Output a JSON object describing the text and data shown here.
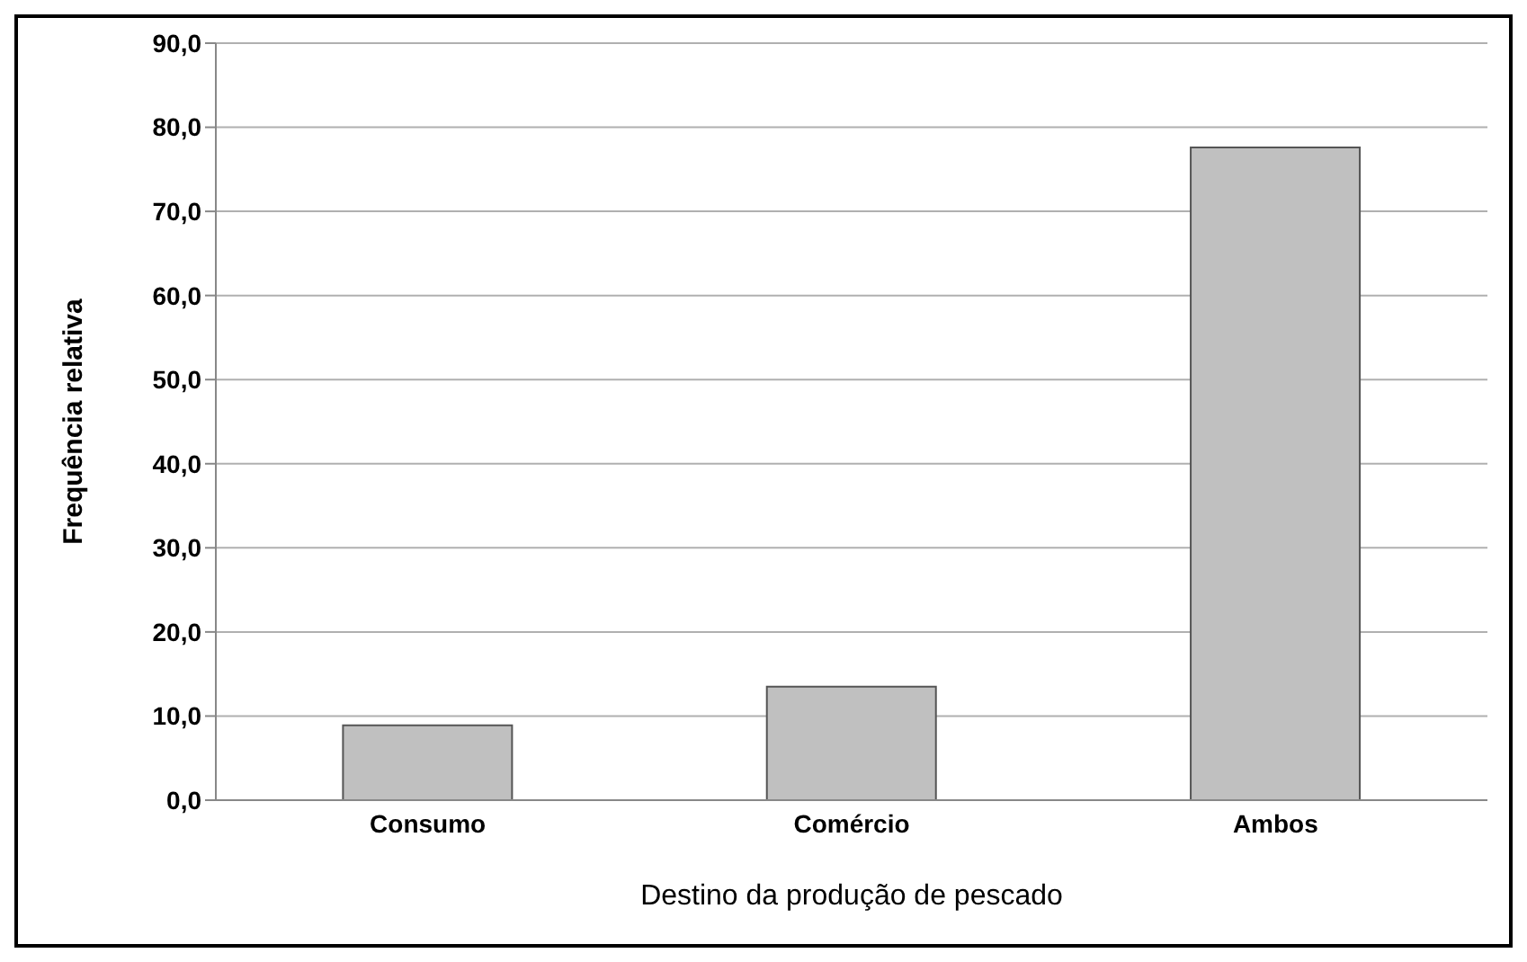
{
  "chart_data": {
    "type": "bar",
    "xlabel": "Destino da produção de pescado",
    "ylabel": "Frequência relativa",
    "categories": [
      "Consumo",
      "Comércio",
      "Ambos"
    ],
    "values": [
      8.9,
      13.5,
      77.6
    ],
    "color": "#c0c0c0",
    "ylim": [
      0,
      90
    ],
    "yticks": [
      {
        "value": 0,
        "label": "0,0"
      },
      {
        "value": 10,
        "label": "10,0"
      },
      {
        "value": 20,
        "label": "20,0"
      },
      {
        "value": 30,
        "label": "30,0"
      },
      {
        "value": 40,
        "label": "40,0"
      },
      {
        "value": 50,
        "label": "50,0"
      },
      {
        "value": 60,
        "label": "60,0"
      },
      {
        "value": 70,
        "label": "70,0"
      },
      {
        "value": 80,
        "label": "80,0"
      },
      {
        "value": 90,
        "label": "90,0"
      }
    ],
    "grid": "y"
  }
}
